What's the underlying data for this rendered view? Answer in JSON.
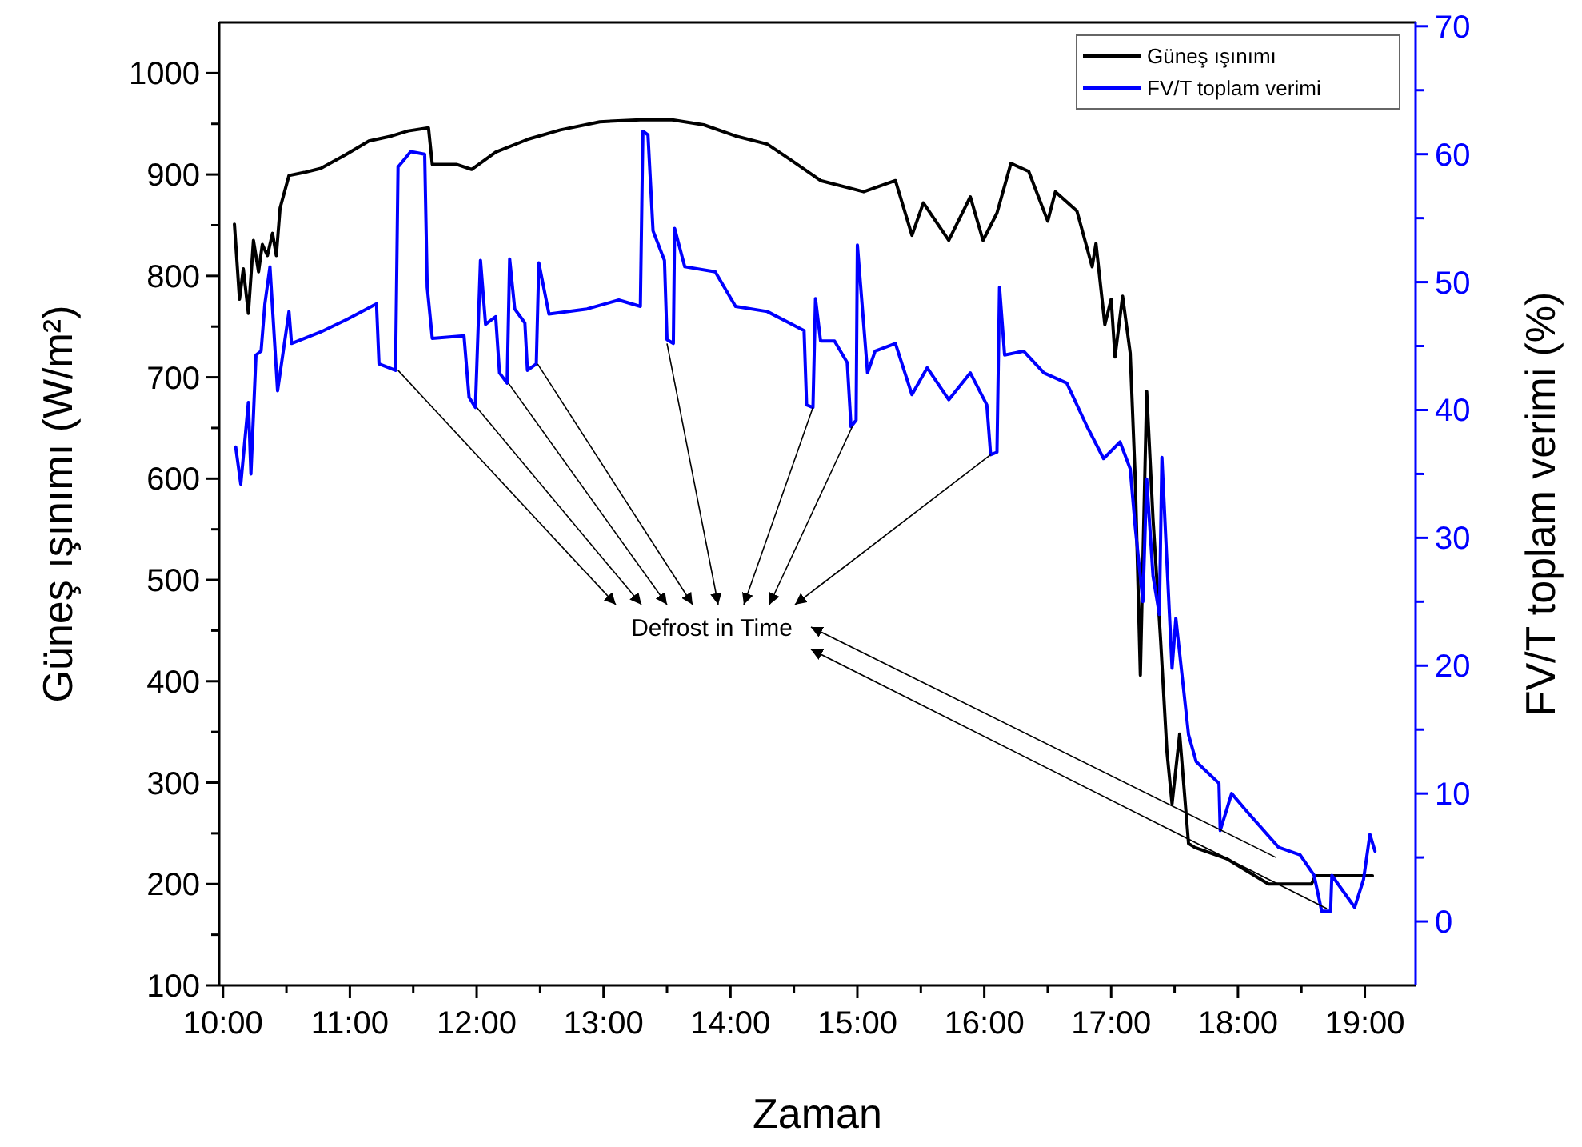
{
  "chart_data": {
    "type": "line",
    "xlabel": "Zaman",
    "ylabel": "Güneş ışınımı (W/m²)",
    "y2label": "FV/T toplam verimi (%)",
    "xlim": [
      9.97,
      19.4
    ],
    "ylim": [
      100,
      1050
    ],
    "y2lim": [
      -5,
      70.3
    ],
    "xticks": [
      {
        "value": 10,
        "label": "10:00"
      },
      {
        "value": 10.5,
        "label": null
      },
      {
        "value": 11,
        "label": "11:00"
      },
      {
        "value": 11.5,
        "label": null
      },
      {
        "value": 12,
        "label": "12:00"
      },
      {
        "value": 12.5,
        "label": null
      },
      {
        "value": 13,
        "label": "13:00"
      },
      {
        "value": 13.5,
        "label": null
      },
      {
        "value": 14,
        "label": "14:00"
      },
      {
        "value": 14.5,
        "label": null
      },
      {
        "value": 15,
        "label": "15:00"
      },
      {
        "value": 15.5,
        "label": null
      },
      {
        "value": 16,
        "label": "16:00"
      },
      {
        "value": 16.5,
        "label": null
      },
      {
        "value": 17,
        "label": "17:00"
      },
      {
        "value": 17.5,
        "label": null
      },
      {
        "value": 18,
        "label": "18:00"
      },
      {
        "value": 18.5,
        "label": null
      },
      {
        "value": 19,
        "label": "19:00"
      }
    ],
    "yticks": [
      100,
      {
        "value": 150,
        "label": null
      },
      200,
      {
        "value": 250,
        "label": null
      },
      300,
      {
        "value": 350,
        "label": null
      },
      400,
      {
        "value": 450,
        "label": null
      },
      500,
      {
        "value": 550,
        "label": null
      },
      600,
      {
        "value": 650,
        "label": null
      },
      700,
      {
        "value": 750,
        "label": null
      },
      800,
      {
        "value": 850,
        "label": null
      },
      900,
      {
        "value": 950,
        "label": null
      },
      1000
    ],
    "y2ticks": [
      0,
      {
        "value": 5,
        "label": null
      },
      10,
      {
        "value": 15,
        "label": null
      },
      20,
      {
        "value": 25,
        "label": null
      },
      30,
      {
        "value": 35,
        "label": null
      },
      40,
      {
        "value": 45,
        "label": null
      },
      50,
      {
        "value": 55,
        "label": null
      },
      60,
      {
        "value": 65,
        "label": null
      },
      70
    ],
    "legend": "top right",
    "grid": false,
    "marker": "none",
    "line_style": "solid",
    "annotations": [
      "Defrost in Time"
    ],
    "series": [
      {
        "name": "Güneş ışınımı",
        "color": "#000000",
        "x": [
          10.09,
          10.13,
          10.16,
          10.2,
          10.24,
          10.28,
          10.31,
          10.35,
          10.39,
          10.42,
          10.45,
          10.52,
          10.64,
          10.77,
          10.96,
          11.15,
          11.33,
          11.46,
          11.62,
          11.65,
          11.84,
          11.96,
          12.15,
          12.41,
          12.66,
          12.97,
          13.29,
          13.54,
          13.79,
          14.04,
          14.29,
          14.48,
          14.71,
          15.05,
          15.3,
          15.43,
          15.52,
          15.72,
          15.89,
          15.99,
          16.1,
          16.21,
          16.35,
          16.5,
          16.56,
          16.73,
          16.85,
          16.88,
          16.95,
          17.0,
          17.03,
          17.09,
          17.15,
          17.19,
          17.23,
          17.28,
          17.33,
          17.39,
          17.44,
          17.48,
          17.54,
          17.61,
          17.66,
          17.91,
          18.24,
          18.58,
          18.61,
          19.06
        ],
        "values": [
          851,
          777,
          807,
          763,
          835,
          804,
          831,
          820,
          842,
          820,
          867,
          899,
          902,
          906,
          919,
          933,
          938,
          943,
          946,
          910,
          910,
          905,
          922,
          935,
          944,
          952,
          954,
          954,
          949,
          938,
          930,
          914,
          894,
          883,
          894,
          840,
          872,
          835,
          878,
          835,
          862,
          911,
          903,
          854,
          883,
          864,
          809,
          832,
          752,
          777,
          720,
          780,
          724,
          598,
          406,
          686,
          560,
          440,
          330,
          279,
          348,
          240,
          236,
          225,
          200,
          200,
          208,
          208
        ]
      },
      {
        "name": "FV/T toplam verimi",
        "color": "#0000ff",
        "axis": "y2",
        "x": [
          10.1,
          10.14,
          10.2,
          10.22,
          10.26,
          10.3,
          10.33,
          10.37,
          10.43,
          10.52,
          10.54,
          10.77,
          10.98,
          11.21,
          11.23,
          11.36,
          11.38,
          11.48,
          11.59,
          11.61,
          11.65,
          11.9,
          11.94,
          11.99,
          12.03,
          12.07,
          12.15,
          12.18,
          12.24,
          12.26,
          12.3,
          12.38,
          12.4,
          12.47,
          12.49,
          12.57,
          12.87,
          13.12,
          13.29,
          13.31,
          13.35,
          13.39,
          13.48,
          13.5,
          13.55,
          13.56,
          13.64,
          13.88,
          14.04,
          14.29,
          14.58,
          14.6,
          14.65,
          14.67,
          14.71,
          14.82,
          14.92,
          14.95,
          14.99,
          15.0,
          15.08,
          15.14,
          15.3,
          15.43,
          15.55,
          15.72,
          15.89,
          16.02,
          16.05,
          16.1,
          16.12,
          16.16,
          16.31,
          16.47,
          16.65,
          16.81,
          16.94,
          17.07,
          17.15,
          17.19,
          17.25,
          17.28,
          17.33,
          17.38,
          17.4,
          17.44,
          17.48,
          17.51,
          17.61,
          17.67,
          17.85,
          17.86,
          17.95,
          18.07,
          18.32,
          18.49,
          18.6,
          18.66,
          18.73,
          18.74,
          18.92,
          18.99,
          19.04,
          19.08
        ],
        "values": [
          37.1,
          34.2,
          40.6,
          35.0,
          44.3,
          44.6,
          48.3,
          51.2,
          41.5,
          47.7,
          45.2,
          46.1,
          47.1,
          48.3,
          43.6,
          43.1,
          59.0,
          60.2,
          60.0,
          49.6,
          45.6,
          45.8,
          41.0,
          40.2,
          51.7,
          46.7,
          47.3,
          42.9,
          42.1,
          51.8,
          47.9,
          46.8,
          43.1,
          43.6,
          51.5,
          47.5,
          47.9,
          48.6,
          48.1,
          61.8,
          61.5,
          54.0,
          51.7,
          45.5,
          45.2,
          54.2,
          51.2,
          50.8,
          48.1,
          47.7,
          46.2,
          40.4,
          40.2,
          48.7,
          45.4,
          45.4,
          43.7,
          38.7,
          39.2,
          52.9,
          42.9,
          44.6,
          45.2,
          41.2,
          43.3,
          40.8,
          42.9,
          40.4,
          36.5,
          36.7,
          49.6,
          44.3,
          44.6,
          42.9,
          42.1,
          38.7,
          36.2,
          37.5,
          35.4,
          30.8,
          25.0,
          34.6,
          27.0,
          24.0,
          36.3,
          28.0,
          19.8,
          23.7,
          14.6,
          12.5,
          10.8,
          7.1,
          10.0,
          8.6,
          5.8,
          5.2,
          3.6,
          0.8,
          0.8,
          3.6,
          1.1,
          3.3,
          6.8,
          5.5
        ]
      }
    ]
  }
}
